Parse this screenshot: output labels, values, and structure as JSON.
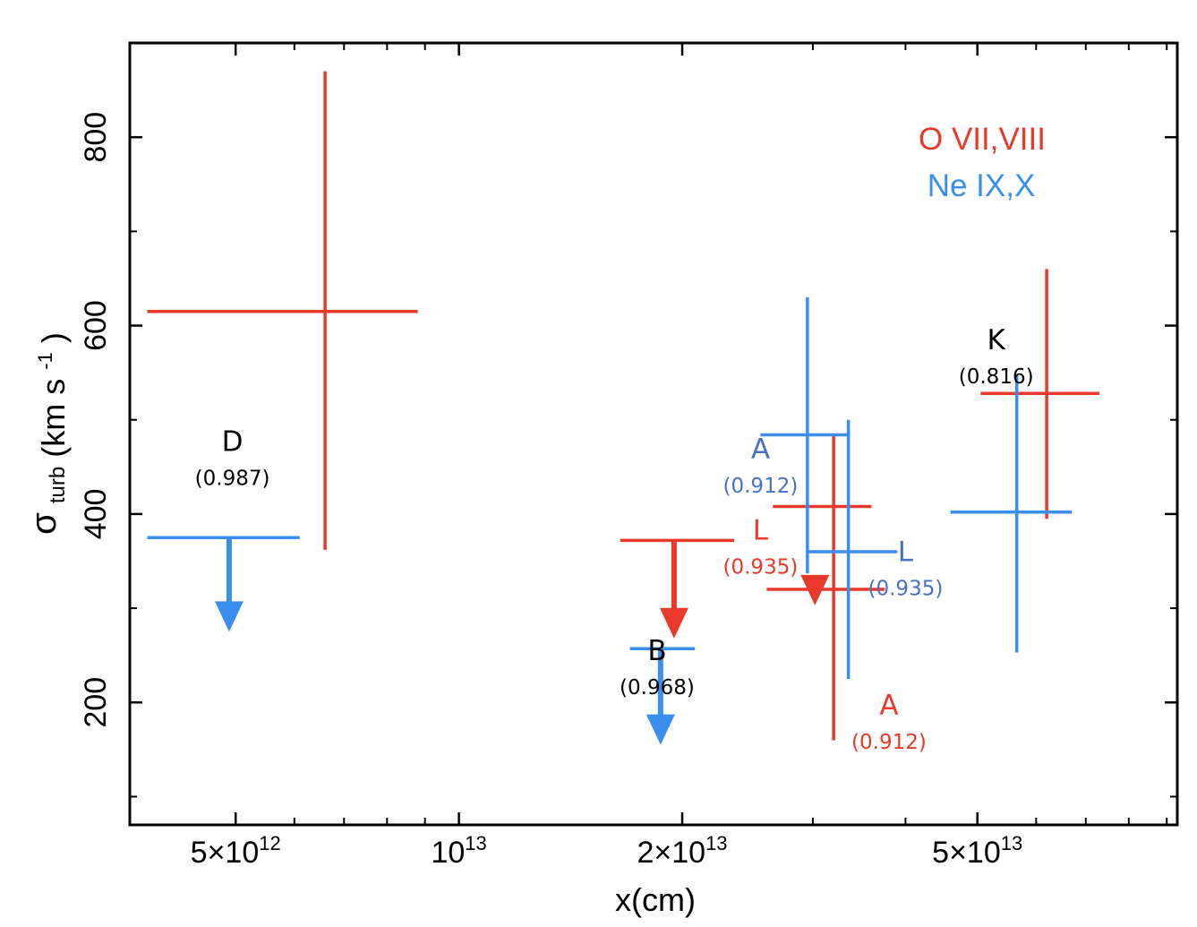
{
  "chart_data": {
    "type": "scatter",
    "title": "",
    "xlabel": "x(cm)",
    "ylabel": {
      "symbol": "σ",
      "sub": "turb",
      "units": "(km s",
      "units_sup": "-1",
      "units_close": ")"
    },
    "x_scale": "log",
    "xlim": [
      3600000000000.0,
      93000000000000.0
    ],
    "ylim": [
      70,
      900
    ],
    "x_ticks": [
      {
        "value": 5000000000000.0,
        "base": "5×10",
        "exp": "12"
      },
      {
        "value": 10000000000000.0,
        "base": "10",
        "exp": "13"
      },
      {
        "value": 20000000000000.0,
        "base": "2×10",
        "exp": "13"
      },
      {
        "value": 50000000000000.0,
        "base": "5×10",
        "exp": "13"
      }
    ],
    "x_minor_ticks": [
      6000000000000.0,
      7000000000000.0,
      8000000000000.0,
      9000000000000.0,
      30000000000000.0,
      40000000000000.0,
      60000000000000.0,
      70000000000000.0,
      80000000000000.0,
      90000000000000.0
    ],
    "y_ticks": [
      {
        "value": 200,
        "label": "200"
      },
      {
        "value": 400,
        "label": "400"
      },
      {
        "value": 600,
        "label": "600"
      },
      {
        "value": 800,
        "label": "800"
      }
    ],
    "y_minor_ticks": [
      100,
      300,
      500,
      700
    ],
    "legend": {
      "position": "top-right",
      "entries": [
        {
          "label": "O VII,VIII",
          "color": "#e8392b"
        },
        {
          "label": "Ne IX,X",
          "color": "#3a8ef0"
        }
      ]
    },
    "series": [
      {
        "name": "O VII,VIII",
        "color": "#e8392b",
        "points": [
          {
            "id": "D",
            "x": 6600000000000.0,
            "y": 615,
            "x_lo": 3800000000000.0,
            "x_hi": 8800000000000.0,
            "y_lo": 362,
            "y_hi": 870
          },
          {
            "id": "K",
            "x": 62000000000000.0,
            "y": 528,
            "x_lo": 50500000000000.0,
            "x_hi": 73000000000000.0,
            "y_lo": 395,
            "y_hi": 660
          },
          {
            "id": "L",
            "x": 32000000000000.0,
            "y": 408,
            "x_lo": 26500000000000.0,
            "x_hi": 36000000000000.0,
            "y_lo": 160,
            "y_hi": 483
          },
          {
            "id": "B",
            "upper_limit": 372,
            "x": 19500000000000.0,
            "x_lo": 16500000000000.0,
            "x_hi": 23500000000000.0,
            "arrow_to": 268
          },
          {
            "id": "A",
            "upper_limit": 320,
            "x": 30200000000000.0,
            "x_lo": 26000000000000.0,
            "x_hi": 37500000000000.0,
            "arrow_to": 303
          }
        ]
      },
      {
        "name": "Ne IX,X",
        "color": "#3a8ef0",
        "points": [
          {
            "id": "A",
            "x": 29500000000000.0,
            "y": 484,
            "x_lo": 25500000000000.0,
            "x_hi": 33500000000000.0,
            "y_lo": 337,
            "y_hi": 630
          },
          {
            "id": "L",
            "x": 33500000000000.0,
            "y": 360,
            "x_lo": 29500000000000.0,
            "x_hi": 39000000000000.0,
            "y_lo": 225,
            "y_hi": 500
          },
          {
            "id": "K",
            "x": 56500000000000.0,
            "y": 402,
            "x_lo": 46000000000000.0,
            "x_hi": 67000000000000.0,
            "y_lo": 253,
            "y_hi": 548
          },
          {
            "id": "D",
            "upper_limit": 375,
            "x": 4900000000000.0,
            "x_lo": 3800000000000.0,
            "x_hi": 6100000000000.0,
            "arrow_to": 275
          },
          {
            "id": "B",
            "upper_limit": 257,
            "x": 18700000000000.0,
            "x_lo": 17000000000000.0,
            "x_hi": 20800000000000.0,
            "arrow_to": 155
          }
        ]
      }
    ],
    "annotations": [
      {
        "name": "D",
        "text": "D",
        "sub": "(0.987)",
        "color": "#000000",
        "x": 4950000000000.0,
        "y": 467
      },
      {
        "name": "B",
        "text": "B",
        "sub": "(0.968)",
        "color": "#000000",
        "x": 18500000000000.0,
        "y": 245
      },
      {
        "name": "K",
        "text": "K",
        "sub": "(0.816)",
        "color": "#000000",
        "x": 53000000000000.0,
        "y": 575
      },
      {
        "name": "A-ne",
        "text": "A",
        "sub": "(0.912)",
        "color": "#4a70c8",
        "x": 25500000000000.0,
        "y": 459
      },
      {
        "name": "L-ox",
        "text": "L",
        "sub": "(0.935)",
        "color": "#e8392b",
        "x": 25500000000000.0,
        "y": 373
      },
      {
        "name": "L-ne",
        "text": "L",
        "sub": "(0.935)",
        "color": "#4a70c8",
        "x": 40000000000000.0,
        "y": 350
      },
      {
        "name": "A-ox",
        "text": "A",
        "sub": "(0.912)",
        "color": "#e8392b",
        "x": 38000000000000.0,
        "y": 187
      }
    ]
  }
}
